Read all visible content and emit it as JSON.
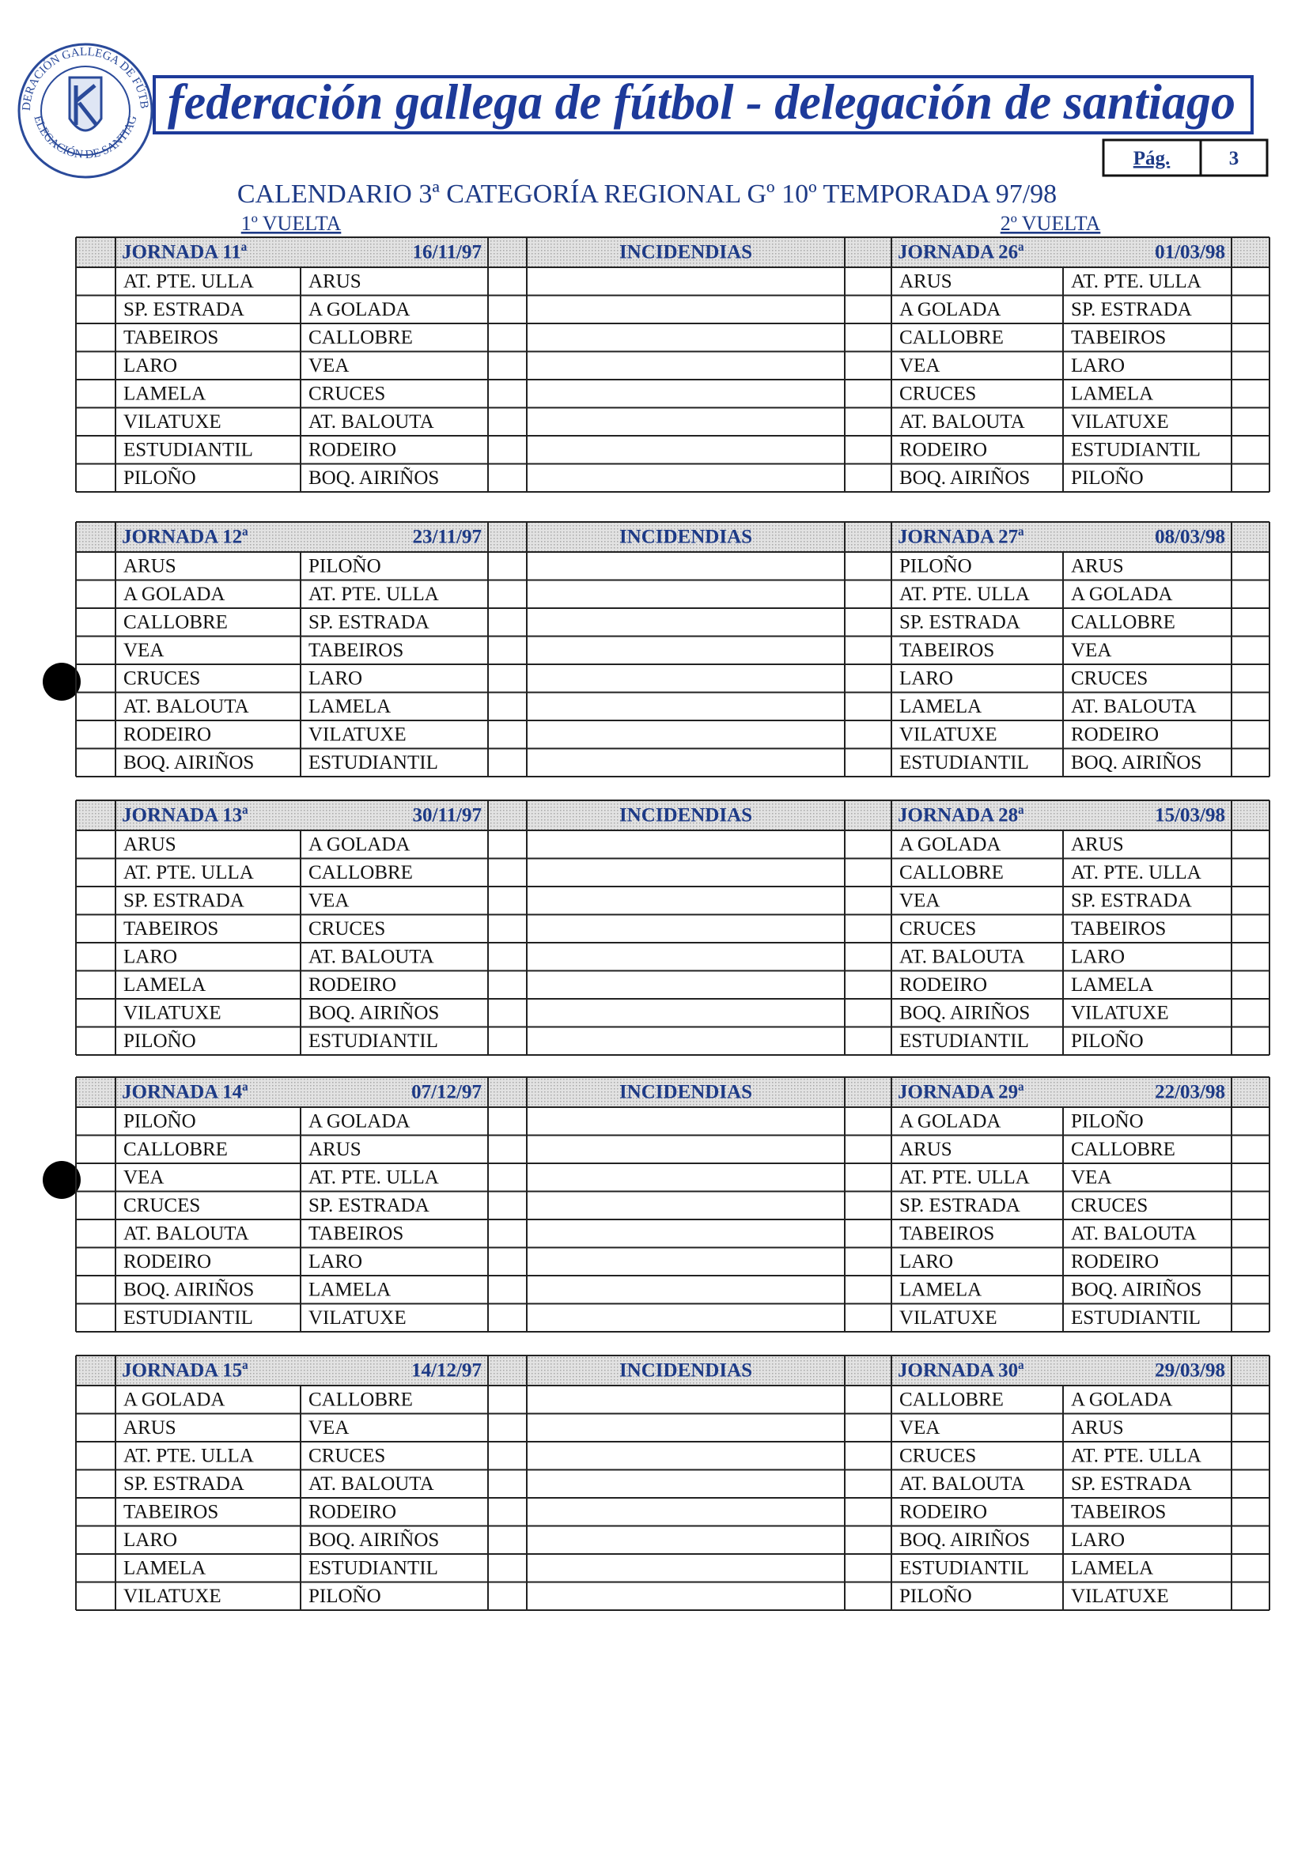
{
  "header": {
    "title": "federación gallega de fútbol - delegación de santiago",
    "logo_top": "FEDERACIÓN GALLEGA DE FÚTBOL",
    "logo_bottom": "DELEGACIÓN DE SANTIAGO",
    "page_label": "Pág.",
    "page_number": "3"
  },
  "document": {
    "title": "CALENDARIO 3ª CATEGORÍA REGIONAL Gº 10º TEMPORADA 97/98",
    "first_round": "1º VUELTA",
    "second_round": "2º VUELTA"
  },
  "rounds": [
    {
      "first": {
        "label": "JORNADA 11ª",
        "date": "16/11/97"
      },
      "incidents": "INCIDENDIAS",
      "second": {
        "label": "JORNADA 26ª",
        "date": "01/03/98"
      },
      "first_matches": [
        [
          "AT. PTE. ULLA",
          "ARUS"
        ],
        [
          "SP. ESTRADA",
          "A GOLADA"
        ],
        [
          "TABEIROS",
          "CALLOBRE"
        ],
        [
          "LARO",
          "VEA"
        ],
        [
          "LAMELA",
          "CRUCES"
        ],
        [
          "VILATUXE",
          "AT. BALOUTA"
        ],
        [
          "ESTUDIANTIL",
          "RODEIRO"
        ],
        [
          "PILOÑO",
          "BOQ. AIRIÑOS"
        ]
      ],
      "second_matches": [
        [
          "ARUS",
          "AT. PTE. ULLA"
        ],
        [
          "A GOLADA",
          "SP. ESTRADA"
        ],
        [
          "CALLOBRE",
          "TABEIROS"
        ],
        [
          "VEA",
          "LARO"
        ],
        [
          "CRUCES",
          "LAMELA"
        ],
        [
          "AT. BALOUTA",
          "VILATUXE"
        ],
        [
          "RODEIRO",
          "ESTUDIANTIL"
        ],
        [
          "BOQ. AIRIÑOS",
          "PILOÑO"
        ]
      ]
    },
    {
      "first": {
        "label": "JORNADA 12ª",
        "date": "23/11/97"
      },
      "incidents": "INCIDENDIAS",
      "second": {
        "label": "JORNADA 27ª",
        "date": "08/03/98"
      },
      "first_matches": [
        [
          "ARUS",
          "PILOÑO"
        ],
        [
          "A GOLADA",
          "AT. PTE. ULLA"
        ],
        [
          "CALLOBRE",
          "SP. ESTRADA"
        ],
        [
          "VEA",
          "TABEIROS"
        ],
        [
          "CRUCES",
          "LARO"
        ],
        [
          "AT. BALOUTA",
          "LAMELA"
        ],
        [
          "RODEIRO",
          "VILATUXE"
        ],
        [
          "BOQ. AIRIÑOS",
          "ESTUDIANTIL"
        ]
      ],
      "second_matches": [
        [
          "PILOÑO",
          "ARUS"
        ],
        [
          "AT. PTE. ULLA",
          "A GOLADA"
        ],
        [
          "SP. ESTRADA",
          "CALLOBRE"
        ],
        [
          "TABEIROS",
          "VEA"
        ],
        [
          "LARO",
          "CRUCES"
        ],
        [
          "LAMELA",
          "AT. BALOUTA"
        ],
        [
          "VILATUXE",
          "RODEIRO"
        ],
        [
          "ESTUDIANTIL",
          "BOQ. AIRIÑOS"
        ]
      ]
    },
    {
      "first": {
        "label": "JORNADA 13ª",
        "date": "30/11/97"
      },
      "incidents": "INCIDENDIAS",
      "second": {
        "label": "JORNADA 28ª",
        "date": "15/03/98"
      },
      "first_matches": [
        [
          "ARUS",
          "A GOLADA"
        ],
        [
          "AT. PTE. ULLA",
          "CALLOBRE"
        ],
        [
          "SP. ESTRADA",
          "VEA"
        ],
        [
          "TABEIROS",
          "CRUCES"
        ],
        [
          "LARO",
          "AT. BALOUTA"
        ],
        [
          "LAMELA",
          "RODEIRO"
        ],
        [
          "VILATUXE",
          "BOQ. AIRIÑOS"
        ],
        [
          "PILOÑO",
          "ESTUDIANTIL"
        ]
      ],
      "second_matches": [
        [
          "A GOLADA",
          "ARUS"
        ],
        [
          "CALLOBRE",
          "AT. PTE. ULLA"
        ],
        [
          "VEA",
          "SP. ESTRADA"
        ],
        [
          "CRUCES",
          "TABEIROS"
        ],
        [
          "AT. BALOUTA",
          "LARO"
        ],
        [
          "RODEIRO",
          "LAMELA"
        ],
        [
          "BOQ. AIRIÑOS",
          "VILATUXE"
        ],
        [
          "ESTUDIANTIL",
          "PILOÑO"
        ]
      ]
    },
    {
      "first": {
        "label": "JORNADA 14ª",
        "date": "07/12/97"
      },
      "incidents": "INCIDENDIAS",
      "second": {
        "label": "JORNADA 29ª",
        "date": "22/03/98"
      },
      "first_matches": [
        [
          "PILOÑO",
          "A GOLADA"
        ],
        [
          "CALLOBRE",
          "ARUS"
        ],
        [
          "VEA",
          "AT. PTE. ULLA"
        ],
        [
          "CRUCES",
          "SP. ESTRADA"
        ],
        [
          "AT. BALOUTA",
          "TABEIROS"
        ],
        [
          "RODEIRO",
          "LARO"
        ],
        [
          "BOQ. AIRIÑOS",
          "LAMELA"
        ],
        [
          "ESTUDIANTIL",
          "VILATUXE"
        ]
      ],
      "second_matches": [
        [
          "A GOLADA",
          "PILOÑO"
        ],
        [
          "ARUS",
          "CALLOBRE"
        ],
        [
          "AT. PTE. ULLA",
          "VEA"
        ],
        [
          "SP. ESTRADA",
          "CRUCES"
        ],
        [
          "TABEIROS",
          "AT. BALOUTA"
        ],
        [
          "LARO",
          "RODEIRO"
        ],
        [
          "LAMELA",
          "BOQ. AIRIÑOS"
        ],
        [
          "VILATUXE",
          "ESTUDIANTIL"
        ]
      ]
    },
    {
      "first": {
        "label": "JORNADA 15ª",
        "date": "14/12/97"
      },
      "incidents": "INCIDENDIAS",
      "second": {
        "label": "JORNADA 30ª",
        "date": "29/03/98"
      },
      "first_matches": [
        [
          "A GOLADA",
          "CALLOBRE"
        ],
        [
          "ARUS",
          "VEA"
        ],
        [
          "AT. PTE. ULLA",
          "CRUCES"
        ],
        [
          "SP. ESTRADA",
          "AT. BALOUTA"
        ],
        [
          "TABEIROS",
          "RODEIRO"
        ],
        [
          "LARO",
          "BOQ. AIRIÑOS"
        ],
        [
          "LAMELA",
          "ESTUDIANTIL"
        ],
        [
          "VILATUXE",
          "PILOÑO"
        ]
      ],
      "second_matches": [
        [
          "CALLOBRE",
          "A GOLADA"
        ],
        [
          "VEA",
          "ARUS"
        ],
        [
          "CRUCES",
          "AT. PTE. ULLA"
        ],
        [
          "AT. BALOUTA",
          "SP. ESTRADA"
        ],
        [
          "RODEIRO",
          "TABEIROS"
        ],
        [
          "BOQ. AIRIÑOS",
          "LARO"
        ],
        [
          "ESTUDIANTIL",
          "LAMELA"
        ],
        [
          "PILOÑO",
          "VILATUXE"
        ]
      ]
    }
  ]
}
